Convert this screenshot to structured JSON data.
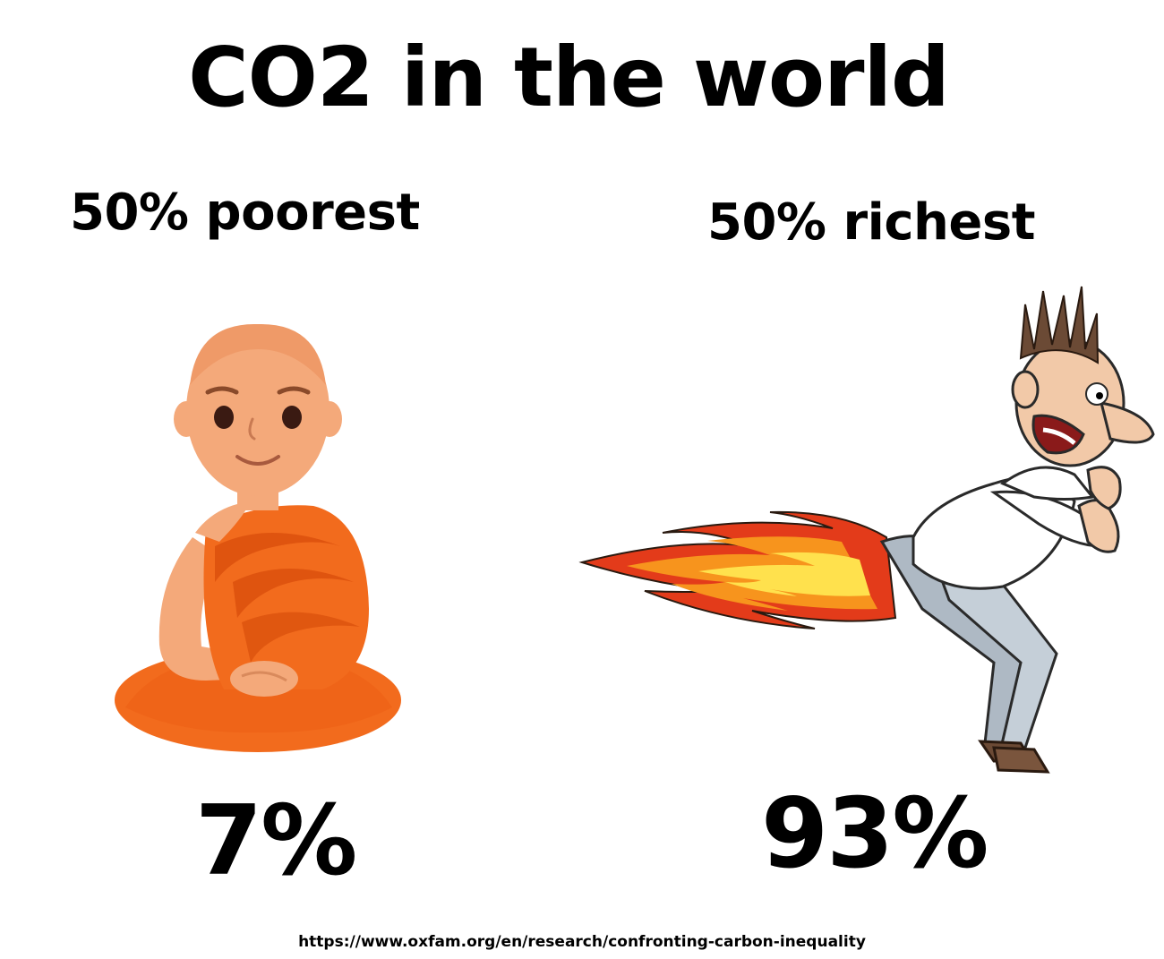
{
  "title": "CO2 in the world",
  "groups": {
    "poorest": {
      "label": "50% poorest",
      "share": "7%",
      "illustration_icon": "meditating-monk-icon"
    },
    "richest": {
      "label": "50% richest",
      "share": "93%",
      "illustration_icon": "rocket-man-icon"
    }
  },
  "source_url": "https://www.oxfam.org/en/research/confronting-carbon-inequality",
  "colors": {
    "robe": "#f26b1d",
    "robe_dark": "#d94f0c",
    "skin": "#f4a97a",
    "flame_outer": "#e33b1a",
    "flame_mid": "#f7941d",
    "flame_inner": "#ffe14d",
    "shirt": "#ffffff",
    "pants": "#aeb9c4",
    "hair": "#6b4a35"
  }
}
